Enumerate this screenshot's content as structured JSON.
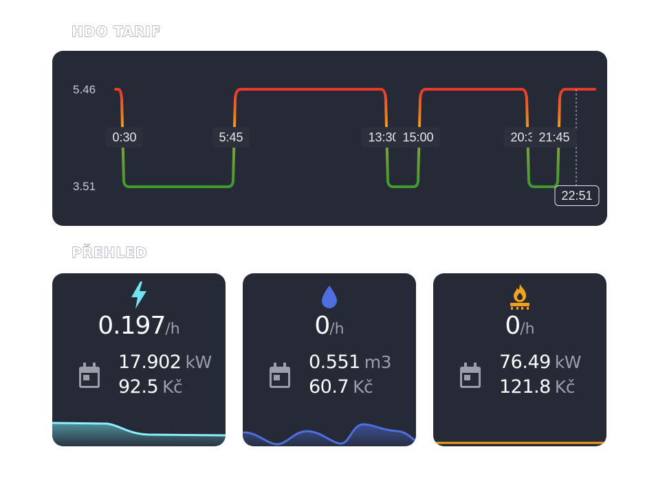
{
  "hdo": {
    "title": "HDO TARIF",
    "y_high": "5.46",
    "y_low": "3.51",
    "times": [
      "0:30",
      "5:45",
      "13:30",
      "15:00",
      "20:30",
      "21:45"
    ],
    "now_label": "22:51",
    "colors": {
      "high": "#e8382b",
      "mid": "#f2a21c",
      "low": "#3f9a2e"
    }
  },
  "chart_data": {
    "type": "line",
    "title": "HDO TARIF",
    "x": [
      "0:00",
      "0:30",
      "5:45",
      "13:30",
      "15:00",
      "20:30",
      "21:45",
      "24:00"
    ],
    "values": [
      5.46,
      3.51,
      5.46,
      3.51,
      5.46,
      3.51,
      5.46,
      5.46
    ],
    "ylim": [
      3.51,
      5.46
    ],
    "step": true,
    "current_time": "22:51"
  },
  "overview": {
    "title": "PŘEHLED",
    "cards": [
      {
        "icon": "lightning-icon",
        "color": "#6fe3f0",
        "rate_value": "0.197",
        "rate_unit": "/h",
        "amount": "17.902",
        "amount_unit": "kW",
        "cost": "92.5",
        "cost_unit": "Kč"
      },
      {
        "icon": "water-drop-icon",
        "color": "#4f6fe0",
        "rate_value": "0",
        "rate_unit": "/h",
        "amount": "0.551",
        "amount_unit": "m3",
        "cost": "60.7",
        "cost_unit": "Kč"
      },
      {
        "icon": "gas-flame-icon",
        "color": "#f2a21c",
        "rate_value": "0",
        "rate_unit": "/h",
        "amount": "76.49",
        "amount_unit": "kW",
        "cost": "121.8",
        "cost_unit": "Kč"
      }
    ]
  }
}
